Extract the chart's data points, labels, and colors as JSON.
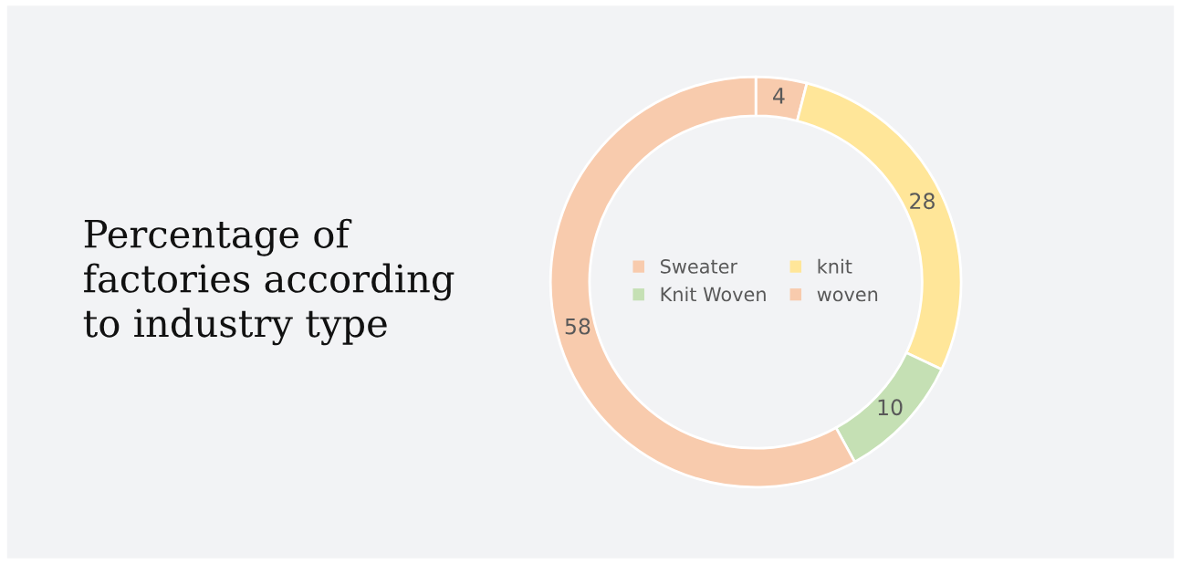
{
  "chart_data": {
    "type": "donut",
    "title": "Percentage of factories according to industry type",
    "categories": [
      "Sweater",
      "knit",
      "Knit Woven",
      "woven"
    ],
    "values": [
      4,
      28,
      10,
      58
    ],
    "colors": [
      "#f8cbad",
      "#ffe699",
      "#c5e0b4",
      "#f8cbad"
    ],
    "data_labels": true,
    "legend": "center"
  }
}
